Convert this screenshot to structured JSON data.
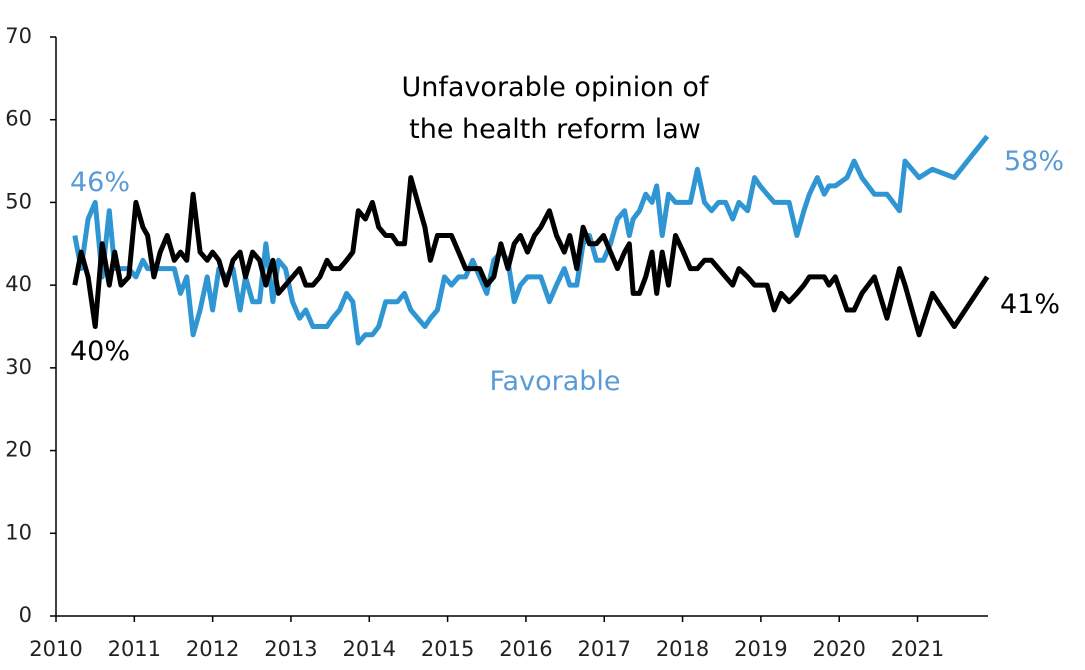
{
  "chart_data": {
    "type": "line",
    "x": [
      2010.24,
      2010.32,
      2010.41,
      2010.5,
      2010.59,
      2010.68,
      2010.75,
      2010.83,
      2010.93,
      2011.02,
      2011.11,
      2011.17,
      2011.25,
      2011.33,
      2011.42,
      2011.51,
      2011.59,
      2011.67,
      2011.75,
      2011.84,
      2011.93,
      2012.0,
      2012.08,
      2012.17,
      2012.26,
      2012.35,
      2012.42,
      2012.51,
      2012.6,
      2012.68,
      2012.77,
      2012.84,
      2012.93,
      2013.02,
      2013.11,
      2013.19,
      2013.28,
      2013.37,
      2013.46,
      2013.53,
      2013.62,
      2013.71,
      2013.79,
      2013.86,
      2013.95,
      2014.04,
      2014.12,
      2014.21,
      2014.29,
      2014.36,
      2014.45,
      2014.53,
      2014.62,
      2014.71,
      2014.78,
      2014.87,
      2014.96,
      2015.05,
      2015.14,
      2015.23,
      2015.32,
      2015.41,
      2015.5,
      2015.59,
      2015.68,
      2015.77,
      2015.85,
      2015.93,
      2016.02,
      2016.11,
      2016.19,
      2016.3,
      2016.39,
      2016.49,
      2016.56,
      2016.65,
      2016.73,
      2016.81,
      2016.9,
      2016.99,
      2017.08,
      2017.17,
      2017.26,
      2017.32,
      2017.37,
      2017.45,
      2017.53,
      2017.61,
      2017.67,
      2017.74,
      2017.82,
      2017.91,
      2018.01,
      2018.1,
      2018.19,
      2018.28,
      2018.37,
      2018.46,
      2018.55,
      2018.64,
      2018.72,
      2018.83,
      2018.92,
      2018.99,
      2019.08,
      2019.17,
      2019.26,
      2019.36,
      2019.46,
      2019.55,
      2019.62,
      2019.72,
      2019.81,
      2019.87,
      2019.95,
      2020.1,
      2020.19,
      2020.29,
      2020.45,
      2020.61,
      2020.77,
      2020.84,
      2021.02,
      2021.19,
      2021.47,
      2021.89
    ],
    "series": [
      {
        "name": "Unfavorable opinion of the health reform law",
        "color": "#000000",
        "start_label": "40%",
        "end_label": "41%",
        "values": [
          40,
          44,
          41,
          35,
          45,
          40,
          44,
          40,
          41,
          50,
          47,
          46,
          41,
          44,
          46,
          43,
          44,
          43,
          51,
          44,
          43,
          44,
          43,
          40,
          43,
          44,
          41,
          44,
          43,
          40,
          43,
          39,
          40,
          41,
          42,
          40,
          40,
          41,
          43,
          42,
          42,
          43,
          44,
          49,
          48,
          50,
          47,
          46,
          46,
          45,
          45,
          53,
          50,
          47,
          43,
          46,
          46,
          46,
          44,
          42,
          42,
          42,
          40,
          41,
          45,
          42,
          45,
          46,
          44,
          46,
          47,
          49,
          46,
          44,
          46,
          42,
          47,
          45,
          45,
          46,
          44,
          42,
          44,
          45,
          39,
          39,
          41,
          44,
          39,
          44,
          40,
          46,
          44,
          42,
          42,
          43,
          43,
          42,
          41,
          40,
          42,
          41,
          40,
          40,
          40,
          37,
          39,
          38,
          39,
          40,
          41,
          41,
          41,
          40,
          41,
          37,
          37,
          39,
          41,
          36,
          42,
          40,
          34,
          39,
          35,
          41
        ]
      },
      {
        "name": "Favorable",
        "color": "#2f96d3",
        "start_label": "46%",
        "end_label": "58%",
        "values": [
          46,
          42,
          48,
          50,
          41,
          49,
          42,
          42,
          42,
          41,
          43,
          42,
          42,
          42,
          42,
          42,
          39,
          41,
          34,
          37,
          41,
          37,
          42,
          41,
          42,
          37,
          41,
          38,
          38,
          45,
          38,
          43,
          42,
          38,
          36,
          37,
          35,
          35,
          35,
          36,
          37,
          39,
          38,
          33,
          34,
          34,
          35,
          38,
          38,
          38,
          39,
          37,
          36,
          35,
          36,
          37,
          41,
          40,
          41,
          41,
          43,
          41,
          39,
          43,
          44,
          43,
          38,
          40,
          41,
          41,
          41,
          38,
          40,
          42,
          40,
          40,
          45,
          46,
          43,
          43,
          45,
          48,
          49,
          46,
          48,
          49,
          51,
          50,
          52,
          46,
          51,
          50,
          50,
          50,
          54,
          50,
          49,
          50,
          50,
          48,
          50,
          49,
          53,
          52,
          51,
          50,
          50,
          50,
          46,
          49,
          51,
          53,
          51,
          52,
          52,
          53,
          55,
          53,
          51,
          51,
          49,
          55,
          53,
          54,
          53,
          58
        ]
      }
    ],
    "xlim": [
      2010,
      2021.9
    ],
    "xticks": [
      2010,
      2011,
      2012,
      2013,
      2014,
      2015,
      2016,
      2017,
      2018,
      2019,
      2020,
      2021
    ],
    "ylim": [
      0,
      70
    ],
    "yticks": [
      0,
      10,
      20,
      30,
      40,
      50,
      60,
      70
    ],
    "grid": false
  }
}
